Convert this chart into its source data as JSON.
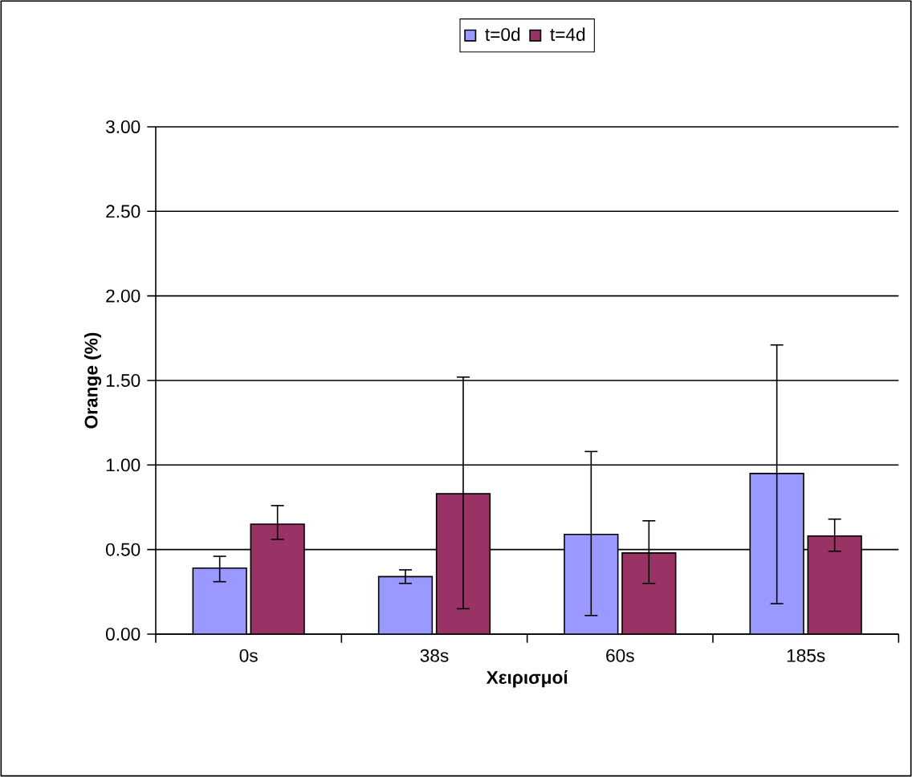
{
  "chart_data": {
    "type": "bar",
    "xlabel": "Χειρισμοί",
    "ylabel": "Orange (%)",
    "categories": [
      "0s",
      "38s",
      "60s",
      "185s"
    ],
    "series": [
      {
        "name": "t=0d",
        "color": "#9999ff",
        "values": [
          0.39,
          0.34,
          0.59,
          0.95
        ],
        "errors": [
          [
            0.31,
            0.46
          ],
          [
            0.3,
            0.38
          ],
          [
            0.11,
            1.08
          ],
          [
            0.18,
            1.71
          ]
        ]
      },
      {
        "name": "t=4d",
        "color": "#993366",
        "values": [
          0.65,
          0.83,
          0.48,
          0.58
        ],
        "errors": [
          [
            0.56,
            0.76
          ],
          [
            0.15,
            1.52
          ],
          [
            0.3,
            0.67
          ],
          [
            0.49,
            0.68
          ]
        ]
      }
    ],
    "ylim": [
      0,
      3
    ],
    "yticks": [
      {
        "value": 0,
        "label": "0.00"
      },
      {
        "value": 0.5,
        "label": "0.50"
      },
      {
        "value": 1,
        "label": "1.00"
      },
      {
        "value": 1.5,
        "label": "1.50"
      },
      {
        "value": 2,
        "label": "2.00"
      },
      {
        "value": 2.5,
        "label": "2.50"
      },
      {
        "value": 3,
        "label": "3.00"
      }
    ],
    "grid": "y",
    "legend": "top"
  }
}
